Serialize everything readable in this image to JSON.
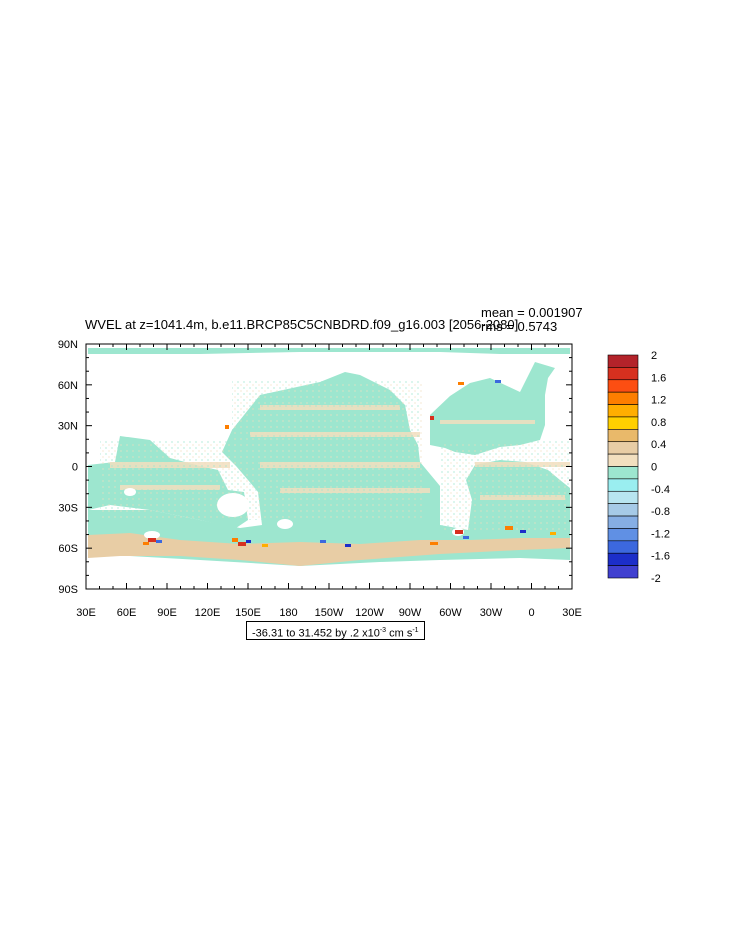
{
  "title": "WVEL at z=1041.4m, b.e11.BRCP85C5CNBDRD.f09_g16.003 [2056-2080]",
  "stats": {
    "mean": "mean = 0.001907",
    "rms": "rms = 0.5743"
  },
  "axes": {
    "y_ticks": [
      "90N",
      "60N",
      "30N",
      "0",
      "30S",
      "60S",
      "90S"
    ],
    "x_ticks": [
      "30E",
      "60E",
      "90E",
      "120E",
      "150E",
      "180",
      "150W",
      "120W",
      "90W",
      "60W",
      "30W",
      "0",
      "30E"
    ]
  },
  "contour_info": {
    "prefix": "-36.31 to 31.452 by .2 x10",
    "exponent": "-3",
    "unit": " cm s",
    "unit_exp": "-1"
  },
  "colorbar": {
    "labels": [
      "2",
      "1.6",
      "1.2",
      "0.8",
      "0.4",
      "0",
      "-0.4",
      "-0.8",
      "-1.2",
      "-1.6",
      "-2"
    ],
    "colors": [
      "#b3232a",
      "#d7301f",
      "#fc4e12",
      "#fd7e00",
      "#ffae00",
      "#ffd000",
      "#e9b96a",
      "#e8cda5",
      "#f2dfbf",
      "#9de6cf",
      "#9aeef0",
      "#b8e5f0",
      "#a6cae7",
      "#86aee4",
      "#6090e4",
      "#3c68de",
      "#1c2ec9",
      "#4040d0"
    ]
  },
  "map": {
    "ocean_base_color": "#9de6cf",
    "land_color": "#ffffff"
  }
}
